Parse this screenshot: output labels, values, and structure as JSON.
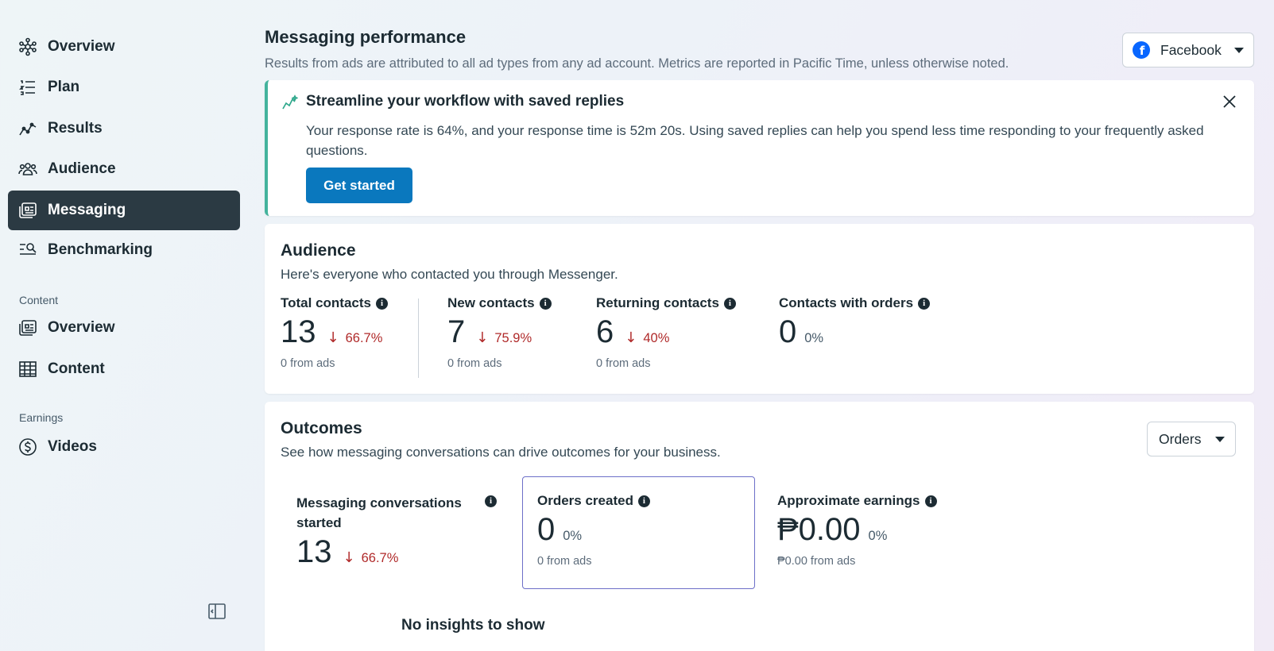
{
  "sidebar": {
    "items": [
      {
        "label": "Overview",
        "icon": "overview-icon"
      },
      {
        "label": "Plan",
        "icon": "plan-list-icon"
      },
      {
        "label": "Results",
        "icon": "results-chart-icon"
      },
      {
        "label": "Audience",
        "icon": "audience-icon"
      },
      {
        "label": "Messaging",
        "icon": "messaging-icon",
        "active": true
      },
      {
        "label": "Benchmarking",
        "icon": "benchmarking-icon"
      }
    ],
    "content_section": "Content",
    "content_items": [
      {
        "label": "Overview",
        "icon": "content-overview-icon"
      },
      {
        "label": "Content",
        "icon": "table-icon"
      }
    ],
    "earnings_section": "Earnings",
    "earnings_items": [
      {
        "label": "Videos",
        "icon": "dollar-icon"
      }
    ]
  },
  "header": {
    "title": "Messaging performance",
    "subtitle": "Results from ads are attributed to all ad types from any ad account. Metrics are reported in Pacific Time, unless otherwise noted.",
    "platform": "Facebook"
  },
  "banner": {
    "title": "Streamline your workflow with saved replies",
    "text": "Your response rate is 64%, and your response time is 52m 20s. Using saved replies can help you spend less time responding to your frequently asked questions.",
    "button": "Get started"
  },
  "audience": {
    "title": "Audience",
    "subtitle": "Here's everyone who contacted you through Messenger.",
    "metrics": [
      {
        "label": "Total contacts",
        "value": "13",
        "delta": "66.7%",
        "foot": "0 from ads"
      },
      {
        "label": "New contacts",
        "value": "7",
        "delta": "75.9%",
        "foot": "0 from ads"
      },
      {
        "label": "Returning contacts",
        "value": "6",
        "delta": "40%",
        "foot": "0 from ads"
      },
      {
        "label": "Contacts with orders",
        "value": "0",
        "delta": "0%"
      }
    ]
  },
  "outcomes": {
    "title": "Outcomes",
    "subtitle": "See how messaging conversations can drive outcomes for your business.",
    "dropdown": "Orders",
    "metrics": [
      {
        "label_line1": "Messaging conversations",
        "label_line2": "started",
        "value": "13",
        "delta": "66.7%"
      },
      {
        "label": "Orders created",
        "value": "0",
        "delta": "0%",
        "foot": "0 from ads"
      },
      {
        "label": "Approximate earnings",
        "value": "₱0.00",
        "delta": "0%",
        "foot": "₱0.00 from ads"
      }
    ],
    "empty_state": "No insights to show"
  },
  "colors": {
    "active_nav": "#2b3a43",
    "primary_button": "#0a78be",
    "banner_accent": "#44b39d",
    "negative_delta": "#b02a2a",
    "selected_outline": "#6d6fc8",
    "facebook_blue": "#0866ff"
  }
}
